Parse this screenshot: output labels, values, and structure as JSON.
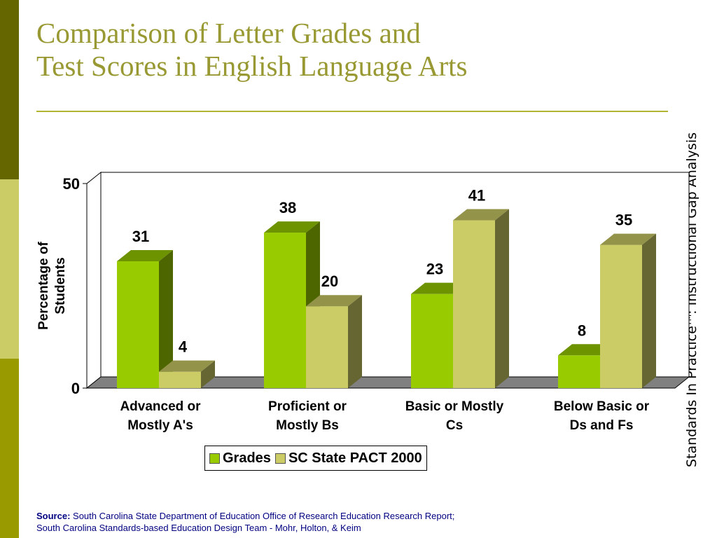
{
  "slide": {
    "title_line1": "Comparison of Letter Grades and",
    "title_line2": "Test Scores in English Language Arts",
    "vertical_note_main": "Standards In Practice",
    "vertical_note_tm": "TM",
    "vertical_note_tail": ": Instructional Gap Analysis",
    "source_label": "Source:",
    "source_line1": "South Carolina State Department of Education Office of Research Education Research Report;",
    "source_line2": "South Carolina Standards-based Education Design Team - Mohr, Holton, & Keim"
  },
  "colors": {
    "accent_title": "#999933",
    "grades": "#99cc00",
    "pact": "#cccc66"
  },
  "chart_data": {
    "type": "bar",
    "title": "",
    "xlabel": "",
    "ylabel": "Percentage of Students",
    "ylim": [
      0,
      50
    ],
    "yticks": [
      0,
      50
    ],
    "grid": false,
    "legend_position": "bottom",
    "categories": [
      "Advanced or Mostly A's",
      "Proficient or Mostly Bs",
      "Basic or Mostly Cs",
      "Below Basic or Ds and Fs"
    ],
    "category_lines": [
      [
        "Advanced or",
        "Mostly A's"
      ],
      [
        "Proficient or",
        "Mostly Bs"
      ],
      [
        "Basic or Mostly",
        "Cs"
      ],
      [
        "Below Basic or",
        "Ds and Fs"
      ]
    ],
    "series": [
      {
        "name": "Grades",
        "values": [
          31,
          38,
          23,
          8
        ],
        "color": "#99cc00"
      },
      {
        "name": "SC State PACT 2000",
        "values": [
          4,
          20,
          41,
          35
        ],
        "color": "#cccc66"
      }
    ]
  }
}
